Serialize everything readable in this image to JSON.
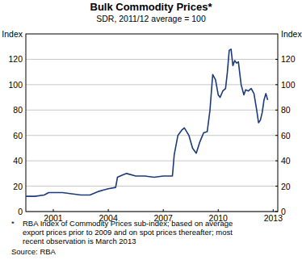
{
  "chart_data": {
    "type": "line",
    "title": "Bulk Commodity Prices*",
    "subtitle": "SDR, 2011/12 average = 100",
    "y_label": "Index",
    "y2_label": "Index",
    "x": [
      2000.0,
      2000.5,
      2001.0,
      2001.25,
      2001.5,
      2002.0,
      2002.5,
      2003.0,
      2003.5,
      2004.0,
      2004.25,
      2004.5,
      2004.9,
      2005.0,
      2005.3,
      2005.5,
      2006.0,
      2006.5,
      2007.0,
      2007.5,
      2008.0,
      2008.1,
      2008.3,
      2008.5,
      2008.65,
      2008.9,
      2009.1,
      2009.3,
      2009.5,
      2009.7,
      2009.9,
      2010.05,
      2010.2,
      2010.35,
      2010.5,
      2010.6,
      2010.75,
      2010.9,
      2011.0,
      2011.1,
      2011.2,
      2011.3,
      2011.4,
      2011.5,
      2011.6,
      2011.75,
      2011.9,
      2012.0,
      2012.15,
      2012.3,
      2012.45,
      2012.6,
      2012.7,
      2012.8,
      2012.9,
      2013.0,
      2013.1,
      2013.2
    ],
    "series": [
      {
        "name": "Bulk commodity prices",
        "color": "#1b3b7a",
        "values": [
          12,
          12,
          13,
          15,
          15,
          15,
          14,
          13,
          13,
          16,
          17,
          18,
          19,
          27,
          29,
          30,
          28,
          28,
          27,
          28,
          28,
          45,
          60,
          64,
          66,
          60,
          50,
          46,
          55,
          62,
          63,
          80,
          108,
          104,
          92,
          90,
          95,
          97,
          110,
          127,
          128,
          115,
          119,
          117,
          118,
          100,
          92,
          96,
          95,
          97,
          93,
          80,
          70,
          72,
          78,
          88,
          93,
          88
        ]
      }
    ],
    "xlim": [
      2000,
      2013.75
    ],
    "xticks": [
      {
        "value": 2001.5,
        "label": "2001"
      },
      {
        "value": 2004.5,
        "label": "2004"
      },
      {
        "value": 2007.5,
        "label": "2007"
      },
      {
        "value": 2010.5,
        "label": "2010"
      },
      {
        "value": 2013.5,
        "label": "2013"
      }
    ],
    "ylim": [
      0,
      140
    ],
    "yticks": [
      0,
      20,
      40,
      60,
      80,
      100,
      120
    ],
    "y2lim": [
      0,
      140
    ],
    "y2ticks": [
      0,
      20,
      40,
      60,
      80,
      100,
      120
    ],
    "grid": true,
    "footnote": {
      "marker": "*",
      "lines": [
        "RBA Index of Commodity Prices sub-index; based on average",
        "export prices prior to 2009 and on spot prices thereafter; most",
        "recent observation is March 2013"
      ]
    },
    "source": "Source: RBA"
  }
}
